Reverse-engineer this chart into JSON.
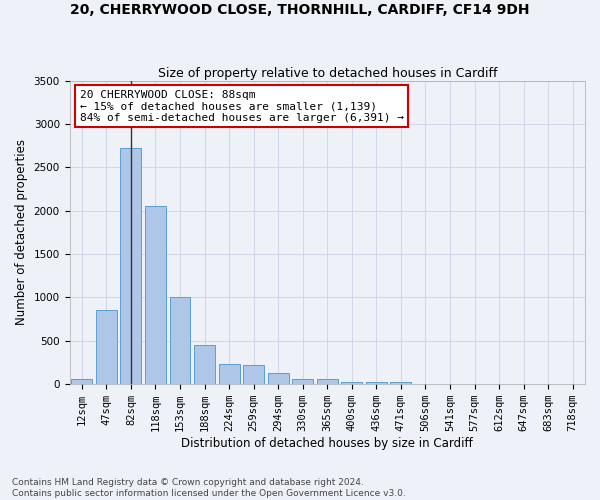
{
  "title": "20, CHERRYWOOD CLOSE, THORNHILL, CARDIFF, CF14 9DH",
  "subtitle": "Size of property relative to detached houses in Cardiff",
  "xlabel": "Distribution of detached houses by size in Cardiff",
  "ylabel": "Number of detached properties",
  "categories": [
    "12sqm",
    "47sqm",
    "82sqm",
    "118sqm",
    "153sqm",
    "188sqm",
    "224sqm",
    "259sqm",
    "294sqm",
    "330sqm",
    "365sqm",
    "400sqm",
    "436sqm",
    "471sqm",
    "506sqm",
    "541sqm",
    "577sqm",
    "612sqm",
    "647sqm",
    "683sqm",
    "718sqm"
  ],
  "values": [
    60,
    855,
    2720,
    2060,
    1005,
    455,
    230,
    225,
    135,
    65,
    55,
    30,
    25,
    20,
    0,
    0,
    0,
    0,
    0,
    0,
    0
  ],
  "bar_color": "#aec6e8",
  "bar_edge_color": "#5a9fd4",
  "vline_x_index": 2,
  "vline_color": "#333333",
  "annotation_text": "20 CHERRYWOOD CLOSE: 88sqm\n← 15% of detached houses are smaller (1,139)\n84% of semi-detached houses are larger (6,391) →",
  "annotation_box_color": "#ffffff",
  "annotation_box_edge_color": "#cc0000",
  "ylim": [
    0,
    3500
  ],
  "yticks": [
    0,
    500,
    1000,
    1500,
    2000,
    2500,
    3000,
    3500
  ],
  "grid_color": "#d0d8e8",
  "bg_color": "#eef2f8",
  "footer": "Contains HM Land Registry data © Crown copyright and database right 2024.\nContains public sector information licensed under the Open Government Licence v3.0.",
  "title_fontsize": 10,
  "subtitle_fontsize": 9,
  "axis_label_fontsize": 8.5,
  "tick_fontsize": 7.5,
  "annotation_fontsize": 8,
  "footer_fontsize": 6.5
}
